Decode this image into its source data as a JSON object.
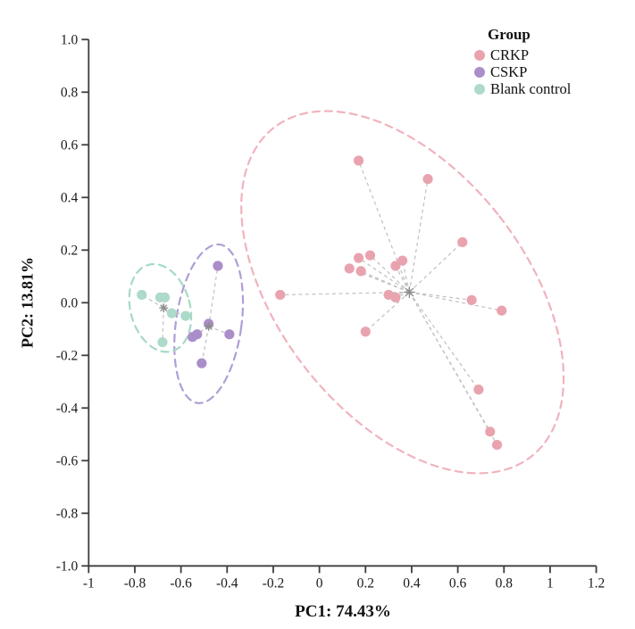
{
  "figure": {
    "background": "#ffffff"
  },
  "chart_data": {
    "type": "scatter",
    "title": "",
    "xlabel": "PC1: 74.43%",
    "ylabel": "PC2: 13.81%",
    "xlim": [
      -1,
      1.2
    ],
    "ylim": [
      -1,
      1
    ],
    "grid": false,
    "x_tick_values": [
      -1,
      -0.8,
      -0.6,
      -0.4,
      -0.2,
      0,
      0.2,
      0.4,
      0.6,
      0.8,
      1,
      1.2
    ],
    "x_tick_labels": [
      "-1",
      "-0.8",
      "-0.6",
      "-0.4",
      "-0.2",
      "0",
      "0.2",
      "0.4",
      "0.6",
      "0.8",
      "1",
      "1.2"
    ],
    "y_tick_values": [
      1,
      0.8,
      0.6,
      0.4,
      0.2,
      0,
      -0.2,
      -0.4,
      -0.6,
      -0.8,
      -1
    ],
    "y_tick_labels": [
      "1.0",
      "0.8",
      "0.6",
      "0.4",
      "0.2",
      "0.0",
      "-0.2",
      "-0.4",
      "-0.6",
      "-0.8",
      "-1.0"
    ],
    "legend": {
      "title": "Group",
      "position": "top-right"
    },
    "style": {
      "axis_color": "#3d3d3d",
      "tick_label_color": "#1a1a1a",
      "spider_line_color": "#c0c0c0",
      "centroid_color": "#8c8c8c",
      "point_radius": 5.6
    },
    "groups": [
      {
        "name": "CRKP",
        "color": "#e9a3af",
        "ellipse_color": "#f0b3bd",
        "centroid": [
          0.39,
          0.04
        ],
        "ellipse": {
          "cx": 0.36,
          "cy": 0.04,
          "rx": 0.534,
          "ry": 0.793,
          "rotation": -38
        },
        "points": [
          [
            0.17,
            0.54
          ],
          [
            0.47,
            0.47
          ],
          [
            0.62,
            0.23
          ],
          [
            0.13,
            0.13
          ],
          [
            0.17,
            0.17
          ],
          [
            0.22,
            0.18
          ],
          [
            0.18,
            0.12
          ],
          [
            0.33,
            0.14
          ],
          [
            0.36,
            0.16
          ],
          [
            -0.17,
            0.03
          ],
          [
            0.3,
            0.03
          ],
          [
            0.33,
            0.02
          ],
          [
            0.66,
            0.01
          ],
          [
            0.79,
            -0.03
          ],
          [
            0.2,
            -0.11
          ],
          [
            0.69,
            -0.33
          ],
          [
            0.74,
            -0.49
          ],
          [
            0.77,
            -0.54
          ]
        ]
      },
      {
        "name": "CSKP",
        "color": "#aa8ec9",
        "ellipse_color": "#af9ed6",
        "centroid": [
          -0.48,
          -0.09
        ],
        "ellipse": {
          "cx": -0.48,
          "cy": -0.08,
          "rx": 0.142,
          "ry": 0.304,
          "rotation": 8
        },
        "points": [
          [
            -0.44,
            0.14
          ],
          [
            -0.48,
            -0.08
          ],
          [
            -0.53,
            -0.12
          ],
          [
            -0.55,
            -0.13
          ],
          [
            -0.39,
            -0.12
          ],
          [
            -0.51,
            -0.23
          ]
        ]
      },
      {
        "name": "Blank control",
        "color": "#aedaca",
        "ellipse_color": "#a6d9c6",
        "centroid": [
          -0.675,
          -0.02
        ],
        "ellipse": {
          "cx": -0.69,
          "cy": -0.02,
          "rx": 0.129,
          "ry": 0.17,
          "rotation": -15
        },
        "points": [
          [
            -0.77,
            0.03
          ],
          [
            -0.69,
            0.02
          ],
          [
            -0.67,
            0.02
          ],
          [
            -0.64,
            -0.04
          ],
          [
            -0.58,
            -0.05
          ],
          [
            -0.68,
            -0.15
          ]
        ]
      }
    ]
  }
}
